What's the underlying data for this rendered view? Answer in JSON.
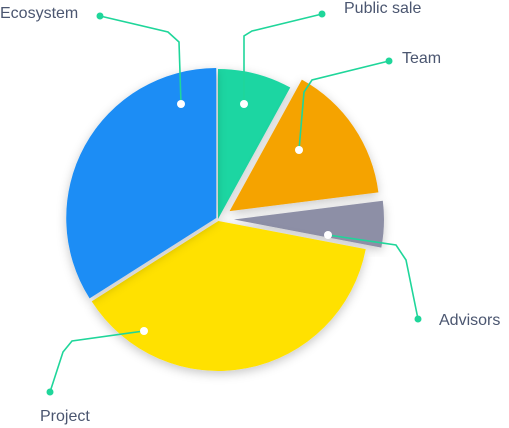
{
  "chart_data": {
    "type": "pie",
    "style": "exploded",
    "categories": [
      "Public sale",
      "Team",
      "Advisors",
      "Project",
      "Ecosystem"
    ],
    "values": [
      8,
      15,
      5,
      38,
      34
    ],
    "colors": [
      "#1ed6a2",
      "#f5a300",
      "#8d8fa6",
      "#ffe100",
      "#1a8df5"
    ],
    "leader_line_color": "#1fd69a",
    "label_color": "#4b5670",
    "legend": "none (callout labels with leader lines)",
    "grid": false
  }
}
